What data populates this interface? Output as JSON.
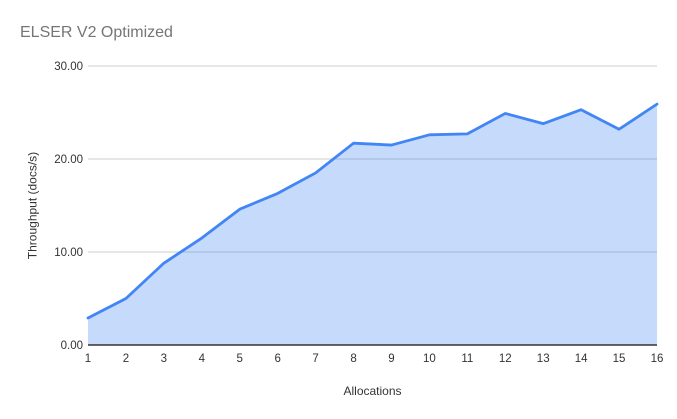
{
  "chart_data": {
    "type": "area",
    "title": "ELSER V2 Optimized",
    "xlabel": "Allocations",
    "ylabel": "Throughput (docs/s)",
    "x": [
      1,
      2,
      3,
      4,
      5,
      6,
      7,
      8,
      9,
      10,
      11,
      12,
      13,
      14,
      15,
      16
    ],
    "series": [
      {
        "name": "Throughput (docs/s)",
        "values": [
          2.9,
          5.0,
          8.8,
          11.5,
          14.6,
          16.3,
          18.5,
          21.7,
          21.5,
          22.6,
          22.7,
          24.9,
          23.8,
          25.3,
          23.2,
          25.9
        ]
      }
    ],
    "ylim": [
      0,
      30
    ],
    "xlim": [
      1,
      16
    ],
    "yticks": [
      {
        "value": 0,
        "label": "0.00"
      },
      {
        "value": 10,
        "label": "10.00"
      },
      {
        "value": 20,
        "label": "20.00"
      },
      {
        "value": 30,
        "label": "30.00"
      }
    ],
    "xticks": [
      "1",
      "2",
      "3",
      "4",
      "5",
      "6",
      "7",
      "8",
      "9",
      "10",
      "11",
      "12",
      "13",
      "14",
      "15",
      "16"
    ],
    "grid": true,
    "legend": "none",
    "colors": {
      "line": "#4285f4",
      "fill": "#4285f4",
      "fill_opacity": 0.3,
      "grid": "#cccccc",
      "axis": "#333333",
      "title_text": "#757575",
      "tick_text": "#333333"
    }
  }
}
